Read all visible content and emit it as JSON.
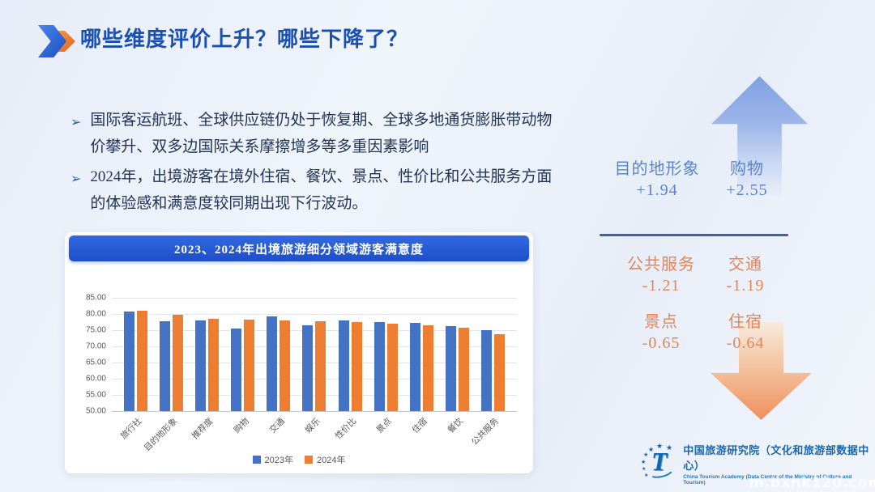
{
  "header": {
    "title": "哪些维度评价上升？哪些下降了？"
  },
  "bullets": {
    "marker": "➢",
    "items": [
      "国际客运航班、全球供应链仍处于恢复期、全球多地通货膨胀带动物价攀升、双多边国际关系摩擦增多等多重因素影响",
      "2024年，出境游客在境外住宿、餐饮、景点、性价比和公共服务方面的体验感和满意度较同期出现下行波动。"
    ]
  },
  "chart_data": {
    "type": "bar",
    "title": "2023、2024年出境旅游细分领域游客满意度",
    "categories": [
      "旅行社",
      "目的地形象",
      "推荐度",
      "购物",
      "交通",
      "娱乐",
      "性价比",
      "景点",
      "住宿",
      "餐饮",
      "公共服务"
    ],
    "series": [
      {
        "name": "2023年",
        "color": "#4472C4",
        "values": [
          80.75,
          77.69,
          77.9,
          75.58,
          79.2,
          76.5,
          78.0,
          77.6,
          77.2,
          76.27,
          74.9
        ]
      },
      {
        "name": "2024年",
        "color": "#ED7D31",
        "values": [
          81.1,
          79.63,
          78.4,
          78.13,
          78.01,
          77.66,
          77.55,
          76.95,
          76.56,
          75.78,
          73.69
        ]
      }
    ],
    "ylim": [
      50,
      85
    ],
    "ytick_step": 5,
    "ytick_decimals": 2,
    "grid": "horizontal",
    "legend_position": "bottom"
  },
  "panel": {
    "up": [
      {
        "label": "目的地形象",
        "value": "+1.94"
      },
      {
        "label": "购物",
        "value": "+2.55"
      }
    ],
    "down": [
      {
        "label": "公共服务",
        "value": "-1.21"
      },
      {
        "label": "交通",
        "value": "-1.19"
      },
      {
        "label": "景点",
        "value": "-0.65"
      },
      {
        "label": "住宿",
        "value": "-0.64"
      }
    ]
  },
  "logo": {
    "zh": "中国旅游研究院（文化和旅游部数据中心）",
    "en": "China Tourism Academy (Data Center of the Ministry of Culture and Tourism)"
  },
  "watermark": "m.bxnk120.com",
  "colors": {
    "title_blue": "#1a50b2",
    "banner_blue": "#2457d2",
    "bar_2023": "#4472C4",
    "bar_2024": "#ED7D31",
    "up_text": "#5c84c8",
    "down_text": "#e0855c",
    "divider": "#3c63a8"
  }
}
